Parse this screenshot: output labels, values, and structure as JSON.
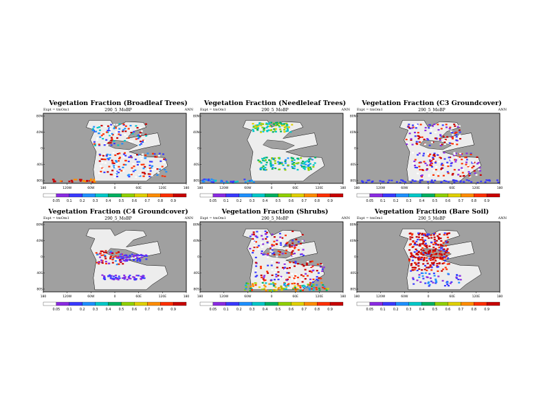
{
  "panels": [
    {
      "title": "Vegetation Fraction (Broadleaf Trees)",
      "subtitle": "290_5_MoBP",
      "expt": "Expt = tmOm1",
      "period": "ANN",
      "pattern": "broadleaf"
    },
    {
      "title": "Vegetation Fraction (Needleleaf Trees)",
      "subtitle": "290_5_MoBP",
      "expt": "Expt = tmOm1",
      "period": "ANN",
      "pattern": "needleleaf"
    },
    {
      "title": "Vegetation Fraction (C3 Groundcover)",
      "subtitle": "290_5_MoBP",
      "expt": "Expt = tmOm1",
      "period": "ANN",
      "pattern": "c3"
    },
    {
      "title": "Vegetation Fraction (C4 Groundcover)",
      "subtitle": "290_5_MoBP",
      "expt": "Expt = tmOm1",
      "period": "ANN",
      "pattern": "c4"
    },
    {
      "title": "Vegetation Fraction (Shrubs)",
      "subtitle": "290_5_MoBP",
      "expt": "Expt = tmOm1",
      "period": "ANN",
      "pattern": "shrubs"
    },
    {
      "title": "Vegetation Fraction (Bare Soil)",
      "subtitle": "290_5_MoBP",
      "expt": "Expt = tmOm1",
      "period": "ANN",
      "pattern": "baresoil"
    }
  ],
  "chart_data": {
    "type": "heatmap",
    "variable": "Vegetation Fraction",
    "xticks": [
      "180",
      "120W",
      "60W",
      "0",
      "60E",
      "120E",
      "180"
    ],
    "yticks": [
      "80N",
      "40N",
      "0",
      "40S",
      "80S"
    ],
    "colorbar": {
      "levels": [
        "0.05",
        "0.1",
        "0.2",
        "0.3",
        "0.4",
        "0.5",
        "0.6",
        "0.7",
        "0.8",
        "0.9"
      ],
      "colors": [
        "#ffffff",
        "#8a2be2",
        "#3a3aff",
        "#1e90ff",
        "#00c8c8",
        "#00b060",
        "#90d000",
        "#e0d000",
        "#ff8c00",
        "#ff3000",
        "#c80000"
      ]
    },
    "ocean_color": "#a0a0a0",
    "land_low_color": "#ededed"
  }
}
